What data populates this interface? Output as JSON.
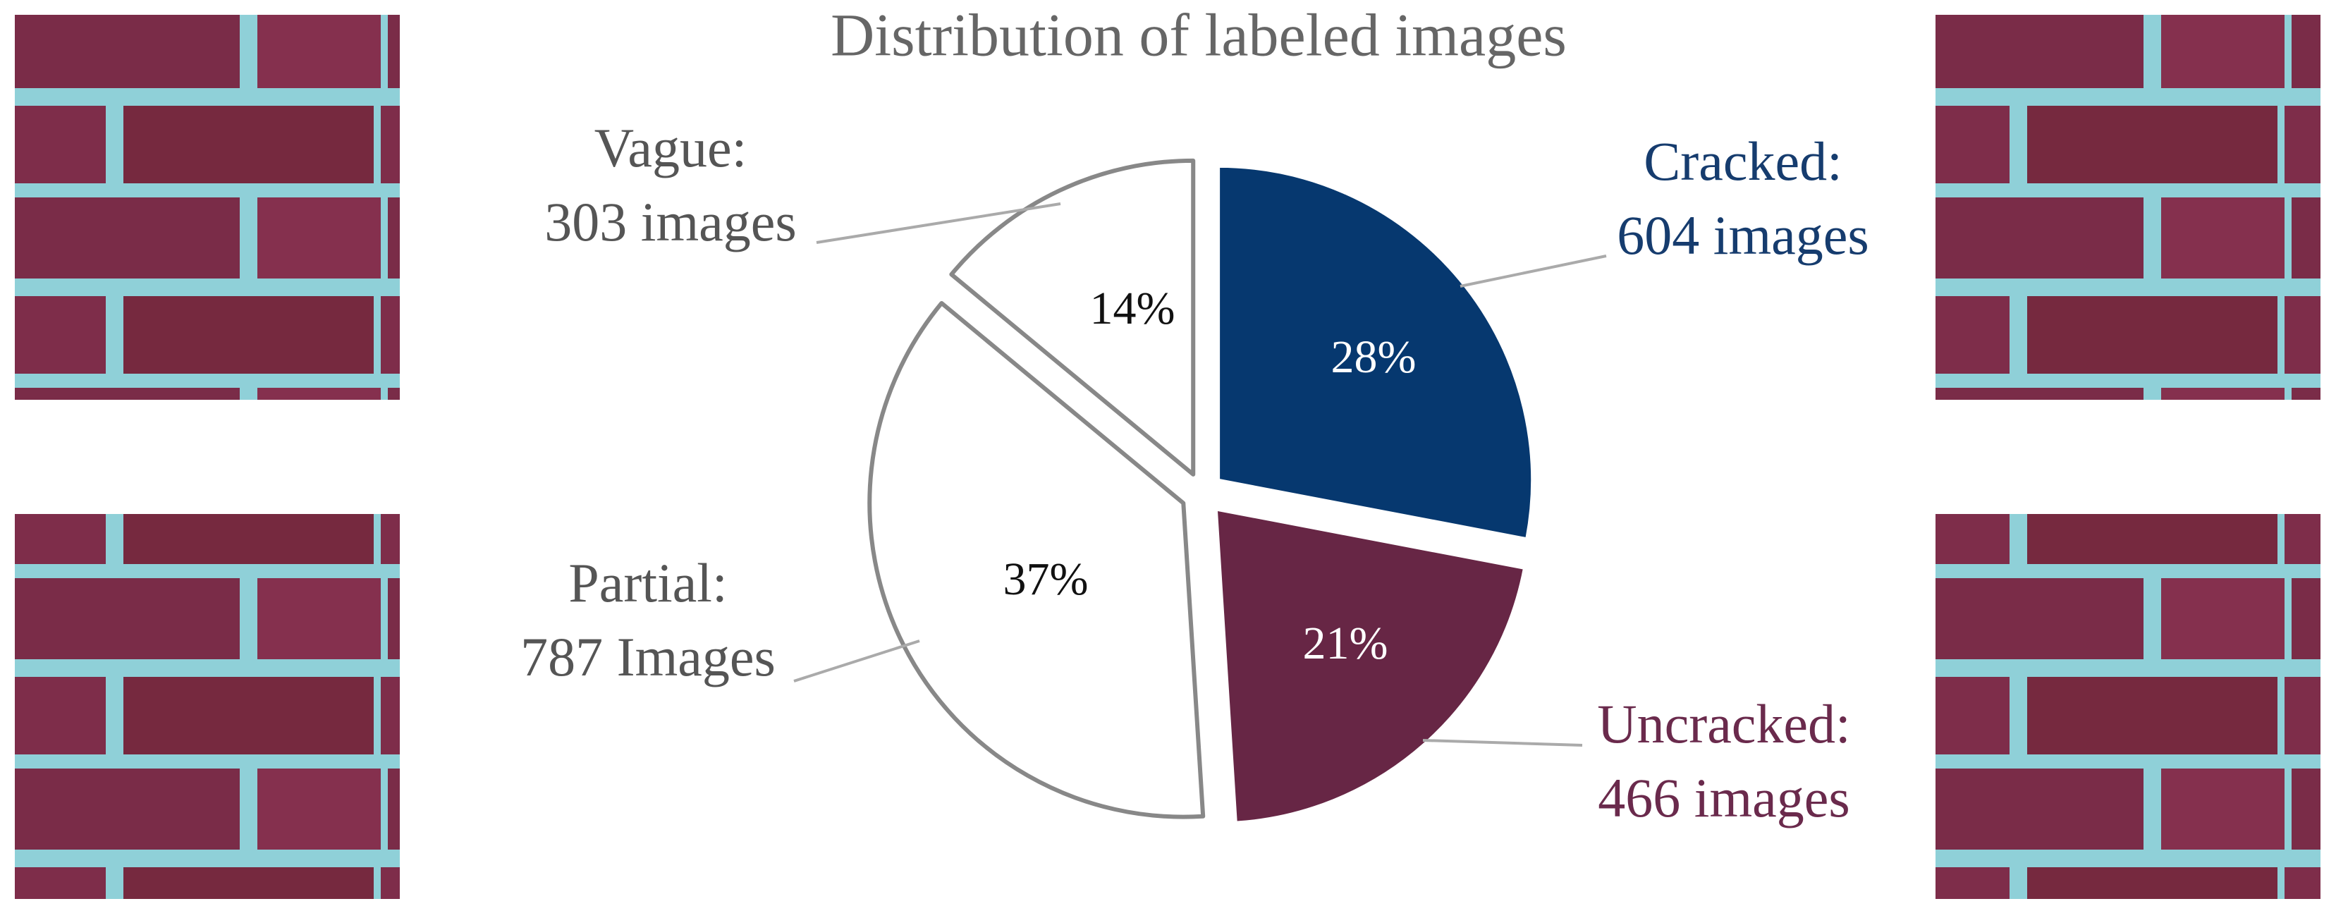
{
  "chart_data": {
    "type": "pie",
    "title": "Distribution of labeled images",
    "categories": [
      "Cracked:",
      "Uncracked:",
      "Partial:",
      "Vague:"
    ],
    "count_labels": [
      "604 images",
      "466 images",
      "787 Images",
      "303 images"
    ],
    "values": [
      28,
      21,
      37,
      14
    ],
    "value_labels": [
      "28%",
      "21%",
      "37%",
      "14%"
    ],
    "colors": [
      "#06386f",
      "#672645",
      "#ffffff",
      "#ffffff"
    ],
    "label_colors": [
      "#163c6e",
      "#6a2a4c",
      "#555555",
      "#555555"
    ],
    "value_label_colors": [
      "#ffffff",
      "#ffffff",
      "#111111",
      "#111111"
    ]
  }
}
